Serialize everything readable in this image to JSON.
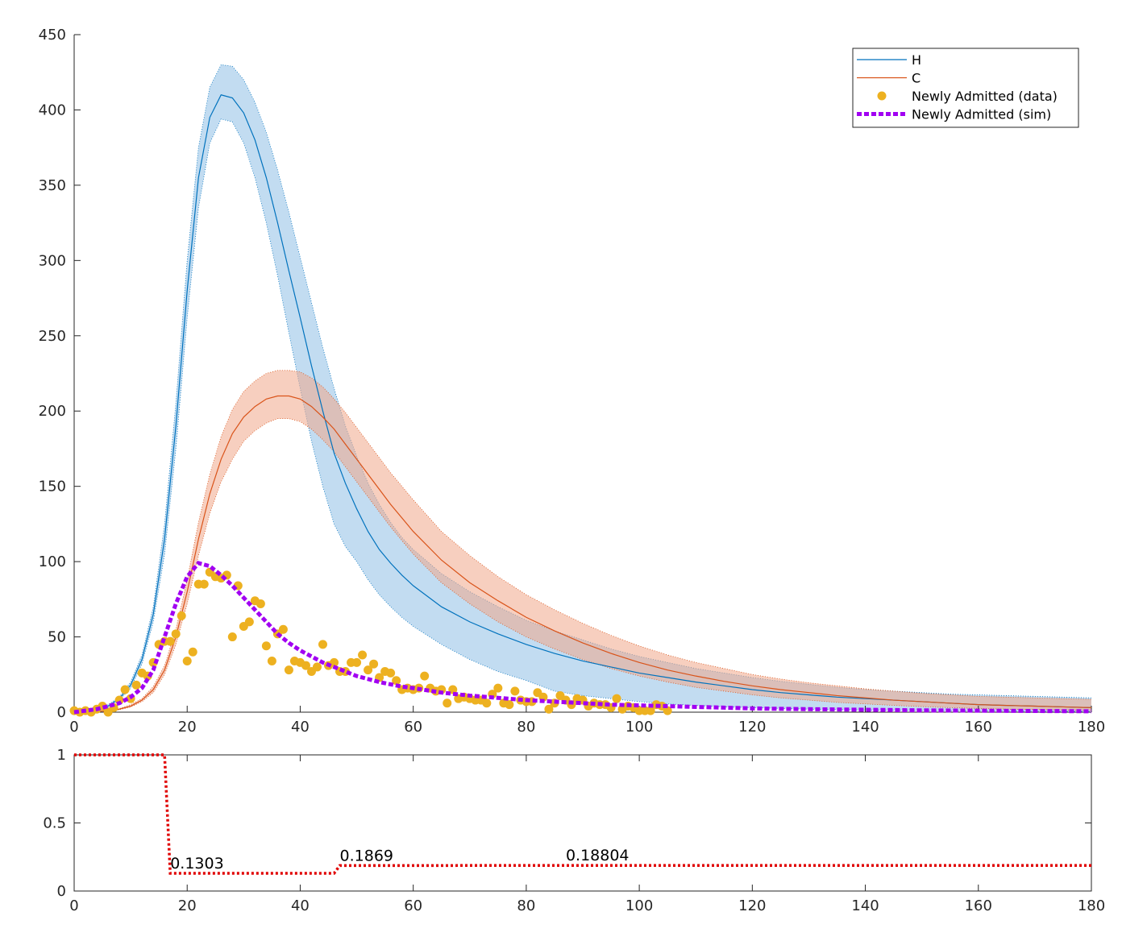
{
  "chart_data": [
    {
      "type": "line",
      "x": [
        0,
        2,
        4,
        6,
        8,
        10,
        12,
        14,
        16,
        18,
        20,
        22,
        24,
        26,
        28,
        30,
        32,
        34,
        36,
        38,
        40,
        42,
        44,
        46,
        48,
        50,
        52,
        54,
        56,
        58,
        60,
        65,
        70,
        75,
        80,
        85,
        90,
        95,
        100,
        105,
        110,
        115,
        120,
        125,
        130,
        135,
        140,
        145,
        150,
        155,
        160,
        165,
        170,
        175,
        180
      ],
      "xlim": [
        0,
        180
      ],
      "xticks": [
        0,
        20,
        40,
        60,
        80,
        100,
        120,
        140,
        160,
        180
      ],
      "ylim": [
        0,
        450
      ],
      "yticks": [
        0,
        50,
        100,
        150,
        200,
        250,
        300,
        350,
        400,
        450
      ],
      "legend": "upper right",
      "box": false,
      "series": [
        {
          "name": "H",
          "color": "#0072bd",
          "band_color": "#8fc0e6",
          "values": [
            0,
            0.5,
            1.5,
            4,
            9,
            18,
            35,
            65,
            115,
            190,
            280,
            355,
            395,
            410,
            408,
            398,
            380,
            355,
            325,
            293,
            262,
            230,
            200,
            172,
            152,
            135,
            120,
            108,
            99,
            91,
            84,
            70,
            60,
            52,
            45,
            39,
            34,
            30,
            26,
            23,
            20,
            17.5,
            15,
            13,
            11.5,
            10,
            9,
            8,
            7,
            6,
            5,
            4.5,
            4,
            3.5,
            3
          ],
          "upper": [
            0,
            0.6,
            1.8,
            5,
            10,
            20,
            38,
            70,
            125,
            205,
            300,
            375,
            415,
            430,
            429,
            420,
            405,
            385,
            360,
            332,
            302,
            272,
            242,
            215,
            190,
            170,
            152,
            138,
            126,
            116,
            108,
            92,
            80,
            70,
            61,
            54,
            48,
            42,
            37,
            33,
            29,
            26,
            23,
            20.5,
            18.5,
            16.5,
            15,
            14,
            13,
            12,
            11.5,
            11,
            10.5,
            10,
            9.5
          ],
          "lower": [
            0,
            0.4,
            1.2,
            3,
            8,
            16,
            32,
            60,
            105,
            175,
            262,
            335,
            378,
            394,
            392,
            378,
            355,
            325,
            290,
            252,
            215,
            180,
            150,
            125,
            110,
            100,
            88,
            78,
            70,
            63,
            57,
            45,
            35,
            27,
            21,
            14,
            11,
            9,
            7,
            5.5,
            4.5,
            3.5,
            3,
            2.5,
            2,
            1.7,
            1.4,
            1.2,
            1,
            0.9,
            0.8,
            0.7,
            0.6,
            0.5,
            0.5
          ]
        },
        {
          "name": "C",
          "color": "#d95319",
          "band_color": "#f0a88a",
          "values": [
            0,
            0,
            0.3,
            1,
            2,
            4,
            8,
            15,
            28,
            50,
            80,
            115,
            145,
            168,
            185,
            196,
            203,
            208,
            210,
            210,
            208,
            203,
            196,
            188,
            178,
            168,
            158,
            148,
            138,
            129,
            120,
            101,
            86,
            74,
            63,
            54,
            46,
            39,
            33,
            28,
            24,
            20.5,
            17.5,
            15,
            13,
            11,
            9.5,
            8,
            7,
            6,
            5,
            4.5,
            4,
            3.5,
            3
          ],
          "upper": [
            0,
            0,
            0.4,
            1.2,
            2.4,
            5,
            9,
            17,
            31,
            55,
            88,
            126,
            158,
            183,
            201,
            213,
            220,
            225,
            227,
            227,
            226,
            222,
            216,
            208,
            199,
            189,
            179,
            169,
            159,
            150,
            141,
            120,
            104,
            90,
            78,
            68,
            59,
            51,
            44,
            38,
            33,
            29,
            25,
            22,
            19.5,
            17.5,
            15.5,
            14,
            12.5,
            11.5,
            10.5,
            10,
            9.5,
            9,
            8.5
          ],
          "lower": [
            0,
            0,
            0.2,
            0.8,
            1.6,
            3.4,
            7,
            13,
            25,
            45,
            72,
            104,
            132,
            153,
            168,
            180,
            187,
            192,
            195,
            195,
            193,
            188,
            181,
            173,
            163,
            153,
            143,
            133,
            123,
            114,
            105,
            86,
            72,
            60,
            50,
            42,
            35,
            29,
            24,
            20,
            16.5,
            14,
            11.5,
            9.5,
            8,
            6.5,
            5.5,
            4.5,
            3.7,
            3,
            2.5,
            2,
            1.7,
            1.4,
            1.2
          ]
        },
        {
          "name": "Newly Admitted (data)",
          "type": "scatter",
          "color": "#edb120",
          "x": [
            0,
            1,
            2,
            3,
            4,
            5,
            6,
            7,
            8,
            9,
            10,
            11,
            12,
            13,
            14,
            15,
            16,
            17,
            18,
            19,
            20,
            21,
            22,
            23,
            24,
            25,
            26,
            27,
            28,
            29,
            30,
            31,
            32,
            33,
            34,
            35,
            36,
            37,
            38,
            39,
            40,
            41,
            42,
            43,
            44,
            45,
            46,
            47,
            48,
            49,
            50,
            51,
            52,
            53,
            54,
            55,
            56,
            57,
            58,
            59,
            60,
            61,
            62,
            63,
            64,
            65,
            66,
            67,
            68,
            69,
            70,
            71,
            72,
            73,
            74,
            75,
            76,
            77,
            78,
            79,
            80,
            81,
            82,
            83,
            84,
            85,
            86,
            87,
            88,
            89,
            90,
            91,
            92,
            93,
            94,
            95,
            96,
            97,
            98,
            99,
            100,
            101,
            102,
            103,
            104,
            105
          ],
          "values": [
            1,
            0,
            1,
            0,
            2,
            4,
            0,
            3,
            8,
            15,
            9,
            18,
            26,
            24,
            33,
            45,
            47,
            47,
            52,
            64,
            34,
            40,
            85,
            85,
            93,
            90,
            89,
            91,
            50,
            84,
            57,
            60,
            74,
            72,
            44,
            34,
            52,
            55,
            28,
            34,
            33,
            31,
            27,
            30,
            45,
            31,
            33,
            27,
            27,
            33,
            33,
            38,
            28,
            32,
            23,
            27,
            26,
            21,
            15,
            16,
            15,
            16,
            24,
            16,
            14,
            15,
            6,
            15,
            9,
            10,
            9,
            8,
            8,
            6,
            12,
            16,
            6,
            5,
            14,
            8,
            7,
            7,
            13,
            10,
            2,
            6,
            11,
            8,
            5,
            9,
            8,
            4,
            6,
            5,
            5,
            3,
            9,
            2,
            4,
            3,
            1,
            1,
            1,
            5,
            4,
            1
          ]
        },
        {
          "name": "Newly Admitted (sim)",
          "color": "#a100f2",
          "dashed": true,
          "values": [
            0,
            1,
            2,
            4,
            6,
            10,
            16,
            28,
            50,
            72,
            90,
            99,
            97,
            91,
            84,
            76,
            68,
            60,
            52,
            46,
            41,
            37,
            33,
            30,
            27,
            24,
            22,
            20,
            18.5,
            17,
            16,
            13,
            11,
            9.5,
            8,
            7,
            6,
            5,
            4.5,
            4,
            3.5,
            3,
            2.5,
            2.2,
            2,
            1.8,
            1.6,
            1.4,
            1.2,
            1.1,
            1,
            0.9,
            0.8,
            0.7,
            0.6
          ]
        }
      ]
    },
    {
      "type": "line",
      "x": [
        0,
        16,
        17,
        46,
        47,
        87,
        180
      ],
      "xlim": [
        0,
        180
      ],
      "xticks": [
        0,
        20,
        40,
        60,
        80,
        100,
        120,
        140,
        160,
        180
      ],
      "ylim": [
        0,
        1
      ],
      "yticks": [
        0,
        0.5,
        1
      ],
      "box": true,
      "series": [
        {
          "color": "#e00000",
          "dotted": true,
          "values": [
            1,
            1,
            0.1303,
            0.1303,
            0.1869,
            0.18804,
            0.18804
          ]
        }
      ],
      "annotations": [
        {
          "text": "0.1303",
          "x": 17,
          "y": 0.1303
        },
        {
          "text": "0.1869",
          "x": 47,
          "y": 0.1869
        },
        {
          "text": "0.18804",
          "x": 87,
          "y": 0.18804
        }
      ]
    }
  ]
}
